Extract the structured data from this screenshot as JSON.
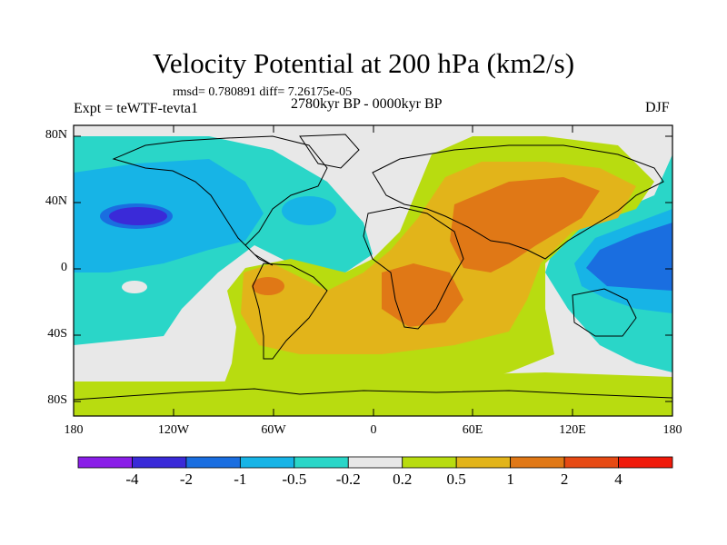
{
  "header": {
    "title": "Velocity Potential at 200 hPa (km2/s)",
    "stats": "rmsd= 0.780891 diff= 7.26175e-05",
    "experiment": "Expt = teWTF-tevta1",
    "period": "2780kyr BP - 0000kyr BP",
    "season": "DJF"
  },
  "axes": {
    "lat_labels": [
      "80N",
      "40N",
      "0",
      "40S",
      "80S"
    ],
    "lon_labels": [
      "180",
      "120W",
      "60W",
      "0",
      "60E",
      "120E",
      "180"
    ]
  },
  "colorbar": {
    "labels": [
      "-4",
      "-2",
      "-1",
      "-0.5",
      "-0.2",
      "0.2",
      "0.5",
      "1",
      "2",
      "4"
    ],
    "colors": [
      "#8a1ee8",
      "#3a2ad8",
      "#1a6ee0",
      "#17b4e6",
      "#2ad6c8",
      "#e8e8e8",
      "#b8dc10",
      "#e2b41a",
      "#e07816",
      "#e64a14",
      "#f01a0a"
    ]
  }
}
